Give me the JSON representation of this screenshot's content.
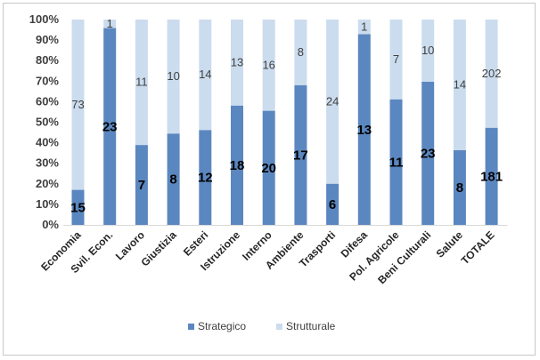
{
  "chart_data": {
    "type": "bar",
    "stacked": "percent",
    "categories": [
      "Economia",
      "Svil. Econ.",
      "Lavoro",
      "Giustizia",
      "Esteri",
      "Istruzione",
      "Interno",
      "Ambiente",
      "Trasporti",
      "Difesa",
      "Pol. Agricole",
      "Beni Culturali",
      "Salute",
      "TOTALE"
    ],
    "series": [
      {
        "name": "Strategico",
        "color": "#5b87c0",
        "values": [
          15,
          23,
          7,
          8,
          12,
          18,
          20,
          17,
          6,
          13,
          11,
          23,
          8,
          181
        ]
      },
      {
        "name": "Strutturale",
        "color": "#cbdcee",
        "values": [
          73,
          1,
          11,
          10,
          14,
          13,
          16,
          8,
          24,
          1,
          7,
          10,
          14,
          202
        ]
      }
    ],
    "yticks": [
      "0%",
      "10%",
      "20%",
      "30%",
      "40%",
      "50%",
      "60%",
      "70%",
      "80%",
      "90%",
      "100%"
    ],
    "ylim": [
      0,
      100
    ],
    "grid": false,
    "legend_position": "bottom"
  }
}
